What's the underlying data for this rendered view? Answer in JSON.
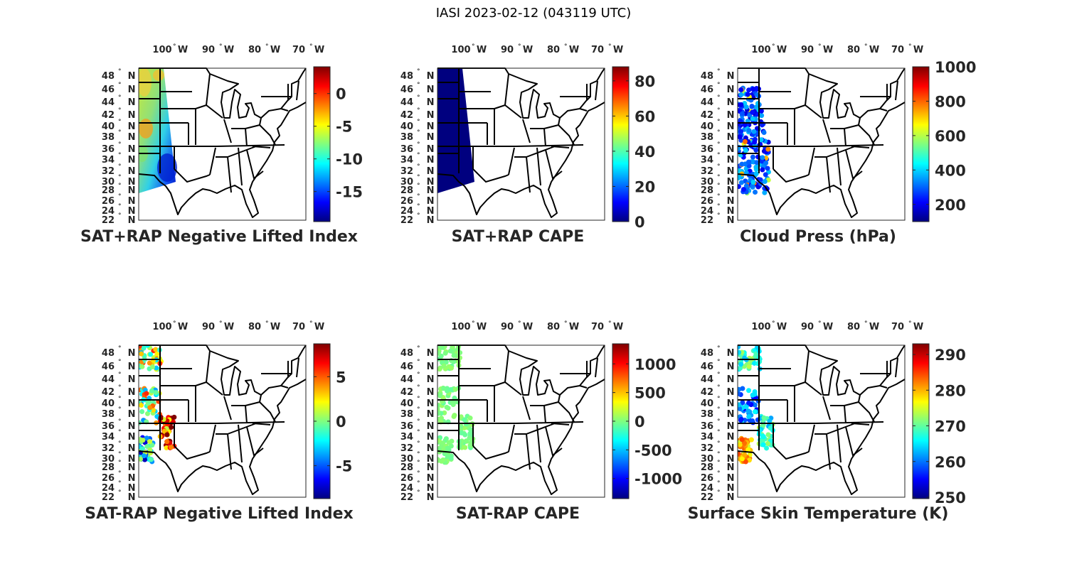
{
  "title": "IASI 2023-02-12 (043119 UTC)",
  "lon_labels": [
    "100",
    "90",
    "80",
    "70"
  ],
  "lon_suffix": "W",
  "lat_labels": [
    "48",
    "46",
    "44",
    "42",
    "40",
    "38",
    "36",
    "34",
    "32",
    "30",
    "28",
    "26",
    "24",
    "22"
  ],
  "lat_suffix": "N",
  "degree_symbol": "°",
  "panels": [
    {
      "title": "SAT+RAP Negative Lifted Index",
      "colorbar": {
        "range": [
          -19.6,
          4.1
        ],
        "ticks": [
          "0",
          "-5",
          "-10",
          "-15"
        ],
        "tick_values": [
          0,
          -5,
          -10,
          -15
        ]
      }
    },
    {
      "title": "SAT+RAP CAPE",
      "colorbar": {
        "range": [
          0,
          88
        ],
        "ticks": [
          "80",
          "60",
          "40",
          "20",
          "0"
        ],
        "tick_values": [
          80,
          60,
          40,
          20,
          0
        ]
      }
    },
    {
      "title": "Cloud Press (hPa)",
      "colorbar": {
        "range": [
          100,
          1000
        ],
        "ticks": [
          "1000",
          "800",
          "600",
          "400",
          "200"
        ],
        "tick_values": [
          1000,
          800,
          600,
          400,
          200
        ]
      }
    },
    {
      "title": "SAT-RAP Negative Lifted Index",
      "colorbar": {
        "range": [
          -8.7,
          8.7
        ],
        "ticks": [
          "5",
          "0",
          "-5"
        ],
        "tick_values": [
          5,
          0,
          -5
        ]
      }
    },
    {
      "title": "SAT-RAP CAPE",
      "colorbar": {
        "range": [
          -1350,
          1350
        ],
        "ticks": [
          "1000",
          "500",
          "0",
          "-500",
          "-1000"
        ],
        "tick_values": [
          1000,
          500,
          0,
          -500,
          -1000
        ]
      }
    },
    {
      "title": "Surface Skin Temperature (K)",
      "colorbar": {
        "range": [
          249.6,
          293
        ],
        "ticks": [
          "290",
          "280",
          "270",
          "260",
          "250"
        ],
        "tick_values": [
          290,
          280,
          270,
          260,
          250
        ]
      }
    }
  ],
  "colormap": [
    "#00007f",
    "#0000ff",
    "#00ffff",
    "#ffff00",
    "#ff0000",
    "#7f0000"
  ]
}
